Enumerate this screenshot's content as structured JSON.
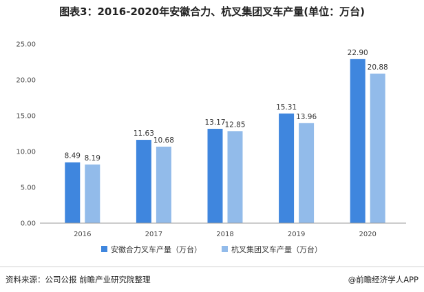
{
  "title": "图表3：2016-2020年安徽合力、杭叉集团叉车产量(单位：万台)",
  "footer": {
    "source": "资料来源：公司公报 前瞻产业研究院整理",
    "brand": "@前瞻经济学人APP"
  },
  "colors": {
    "series_1": "#3f86de",
    "series_2": "#92bbea",
    "axis": "#9a9a9a",
    "text": "#333333"
  },
  "chart_data": {
    "type": "bar",
    "title": "图表3：2016-2020年安徽合力、杭叉集团叉车产量(单位：万台)",
    "xlabel": "",
    "ylabel": "",
    "categories": [
      "2016",
      "2017",
      "2018",
      "2019",
      "2020"
    ],
    "series": [
      {
        "name": "安徽合力叉车产量（万台）",
        "values": [
          8.49,
          11.63,
          13.17,
          15.31,
          22.9
        ],
        "labels": [
          "8.49",
          "11.63",
          "13.17",
          "15.31",
          "22.90"
        ]
      },
      {
        "name": "杭叉集团叉车产量（万台）",
        "values": [
          8.19,
          10.68,
          12.85,
          13.96,
          20.88
        ],
        "labels": [
          "8.19",
          "10.68",
          "12.85",
          "13.96",
          "20.88"
        ]
      }
    ],
    "ylim": [
      0,
      25
    ],
    "yticks": [
      0,
      5,
      10,
      15,
      20,
      25
    ],
    "ytick_labels": [
      "0.00",
      "5.00",
      "10.00",
      "15.00",
      "20.00",
      "25.00"
    ],
    "grid": false,
    "legend_position": "bottom"
  }
}
